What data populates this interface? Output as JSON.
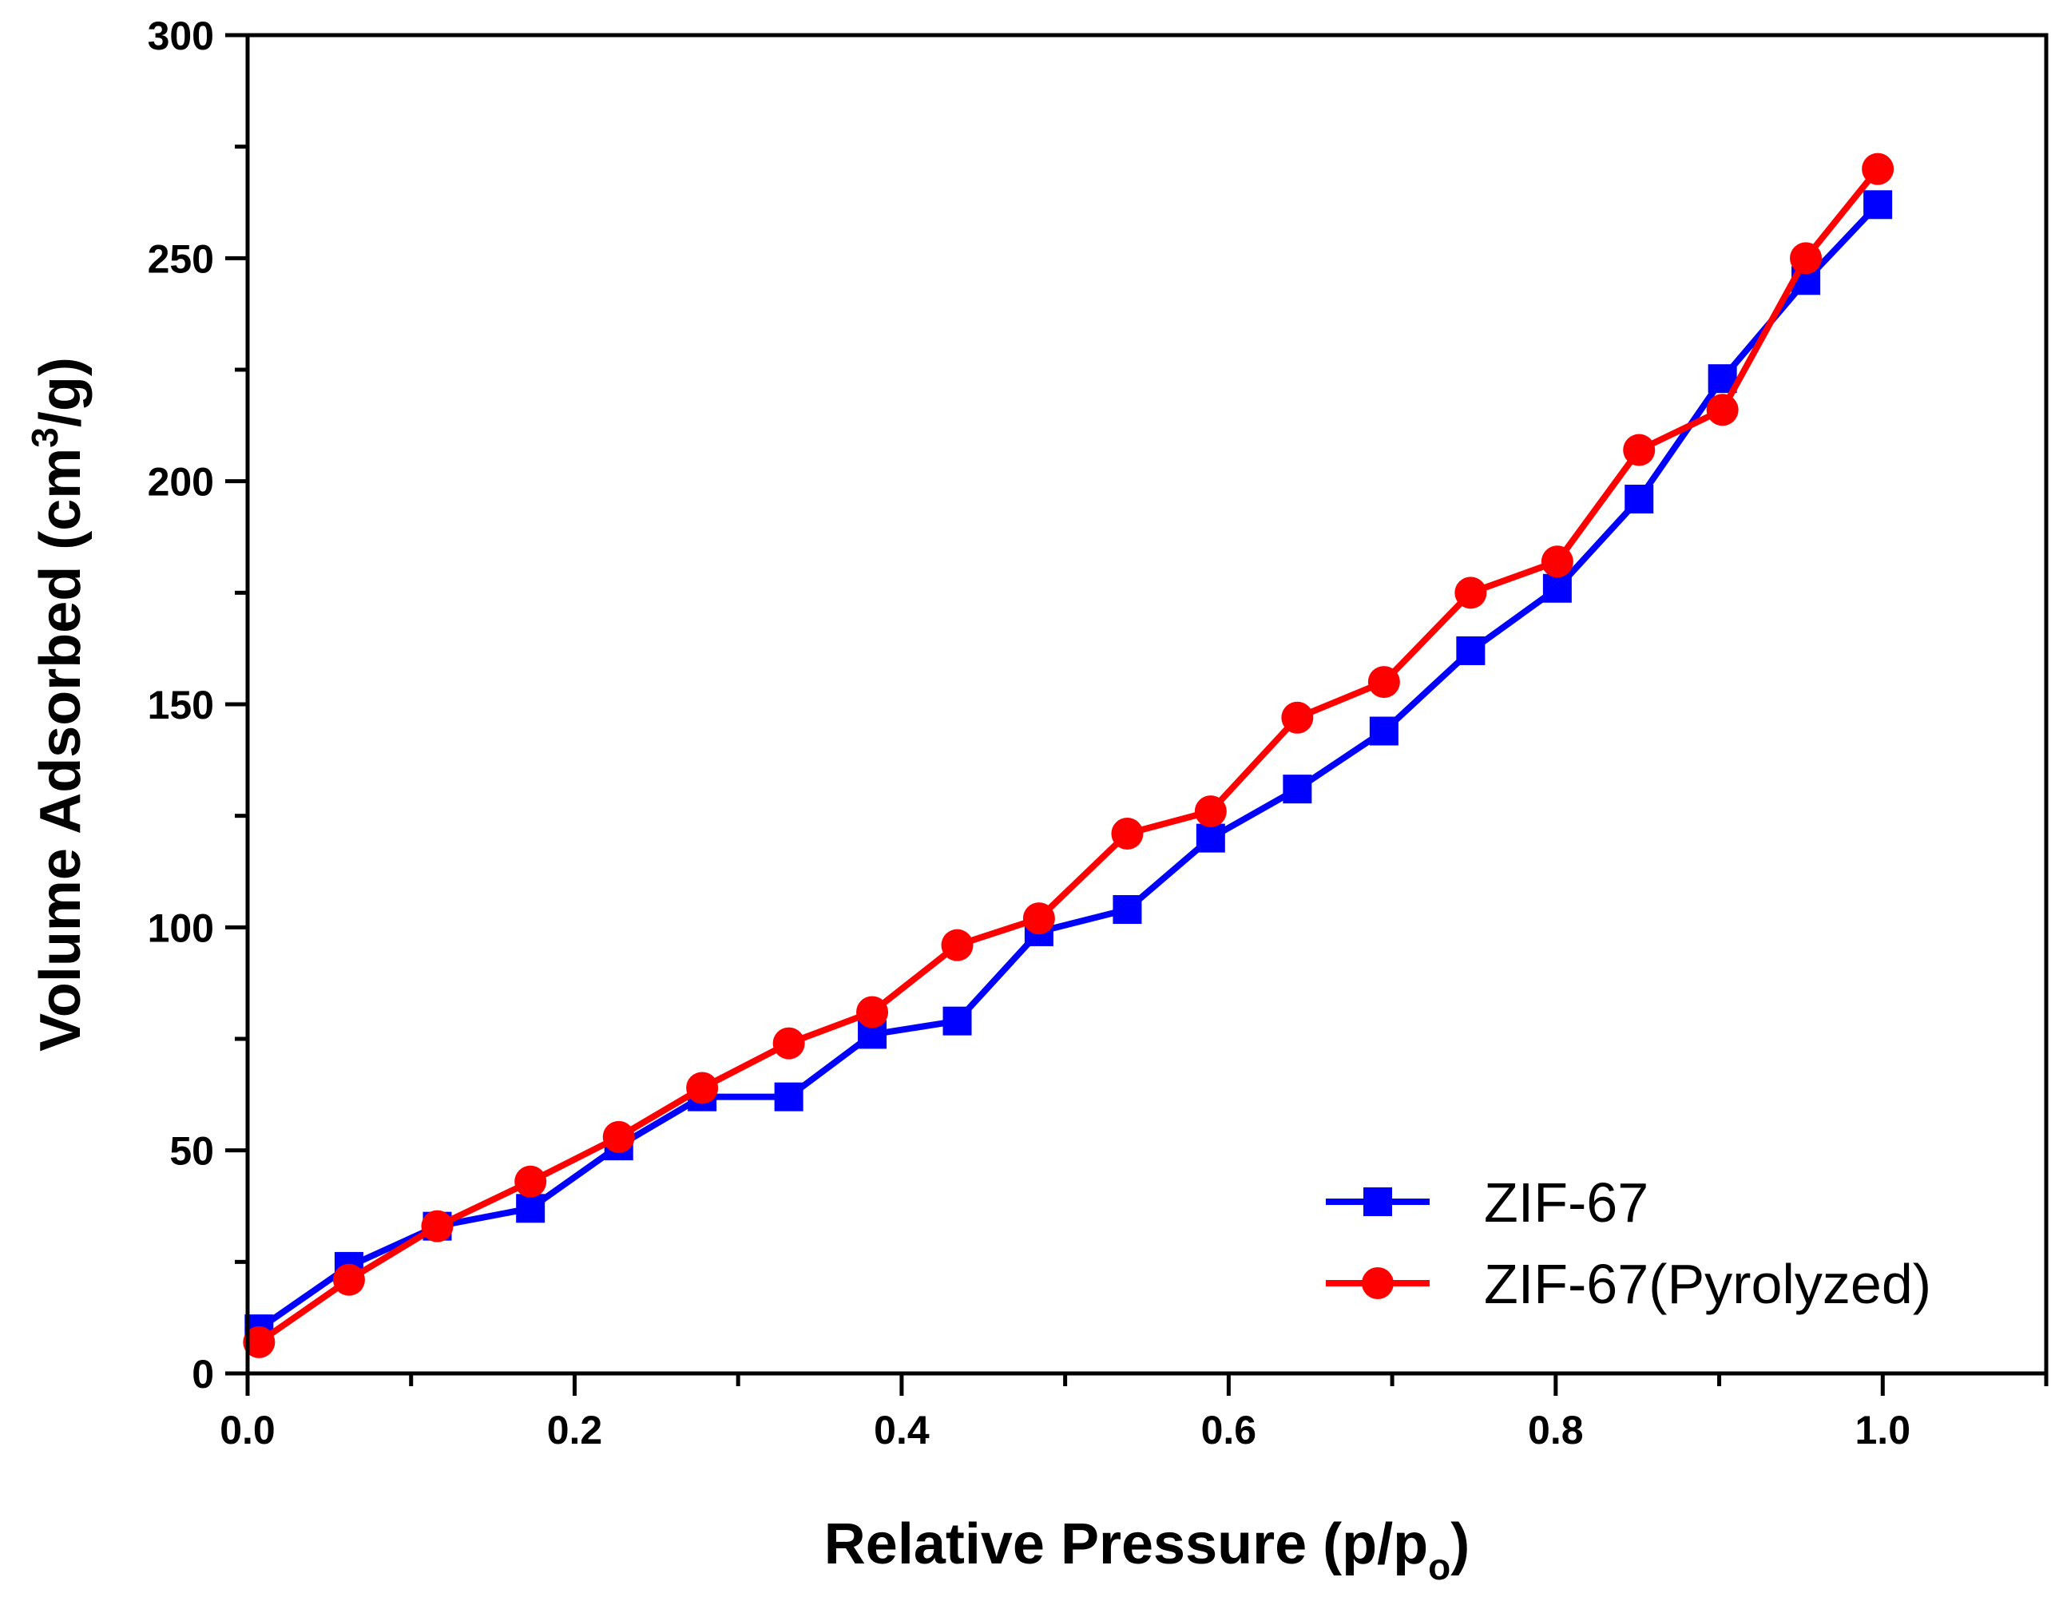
{
  "chart_data": {
    "type": "line",
    "title": "",
    "xlabel": "Relative Pressure (p/p",
    "xlabel_sub": "o",
    "xlabel_end": ")",
    "ylabel": "Volume Adsorbed (cm",
    "ylabel_sup": "3",
    "ylabel_end": "/g)",
    "xlim": [
      0.0,
      1.1
    ],
    "ylim": [
      0,
      300
    ],
    "x_ticks": [
      0.0,
      0.2,
      0.4,
      0.6,
      0.8,
      1.0
    ],
    "x_tick_labels": [
      "0.0",
      "0.2",
      "0.4",
      "0.6",
      "0.8",
      "1.0"
    ],
    "x_minor_ticks": [
      0.1,
      0.3,
      0.5,
      0.7,
      0.9,
      1.1
    ],
    "y_ticks": [
      0,
      50,
      100,
      150,
      200,
      250,
      300
    ],
    "y_tick_labels": [
      "0",
      "50",
      "100",
      "150",
      "200",
      "250",
      "300"
    ],
    "y_minor_ticks": [
      25,
      75,
      125,
      175,
      225,
      275
    ],
    "grid": false,
    "legend_position": "bottom-right",
    "series": [
      {
        "name": "ZIF-67",
        "color": "#0000ff",
        "marker": "square",
        "x": [
          0.007,
          0.062,
          0.116,
          0.173,
          0.227,
          0.278,
          0.331,
          0.382,
          0.434,
          0.484,
          0.538,
          0.589,
          0.642,
          0.695,
          0.748,
          0.801,
          0.851,
          0.902,
          0.953,
          0.997
        ],
        "y": [
          10,
          24,
          33,
          37,
          51,
          62,
          62,
          76,
          79,
          99,
          104,
          120,
          131,
          144,
          162,
          176,
          196,
          223,
          245,
          262
        ]
      },
      {
        "name": "ZIF-67(Pyrolyzed)",
        "color": "#ff0000",
        "marker": "circle",
        "x": [
          0.007,
          0.062,
          0.116,
          0.173,
          0.227,
          0.278,
          0.331,
          0.382,
          0.434,
          0.484,
          0.538,
          0.589,
          0.642,
          0.695,
          0.748,
          0.801,
          0.851,
          0.902,
          0.953,
          0.997
        ],
        "y": [
          7,
          21,
          33,
          43,
          53,
          64,
          74,
          81,
          96,
          102,
          121,
          126,
          147,
          155,
          175,
          182,
          207,
          216,
          250,
          270
        ]
      }
    ]
  }
}
